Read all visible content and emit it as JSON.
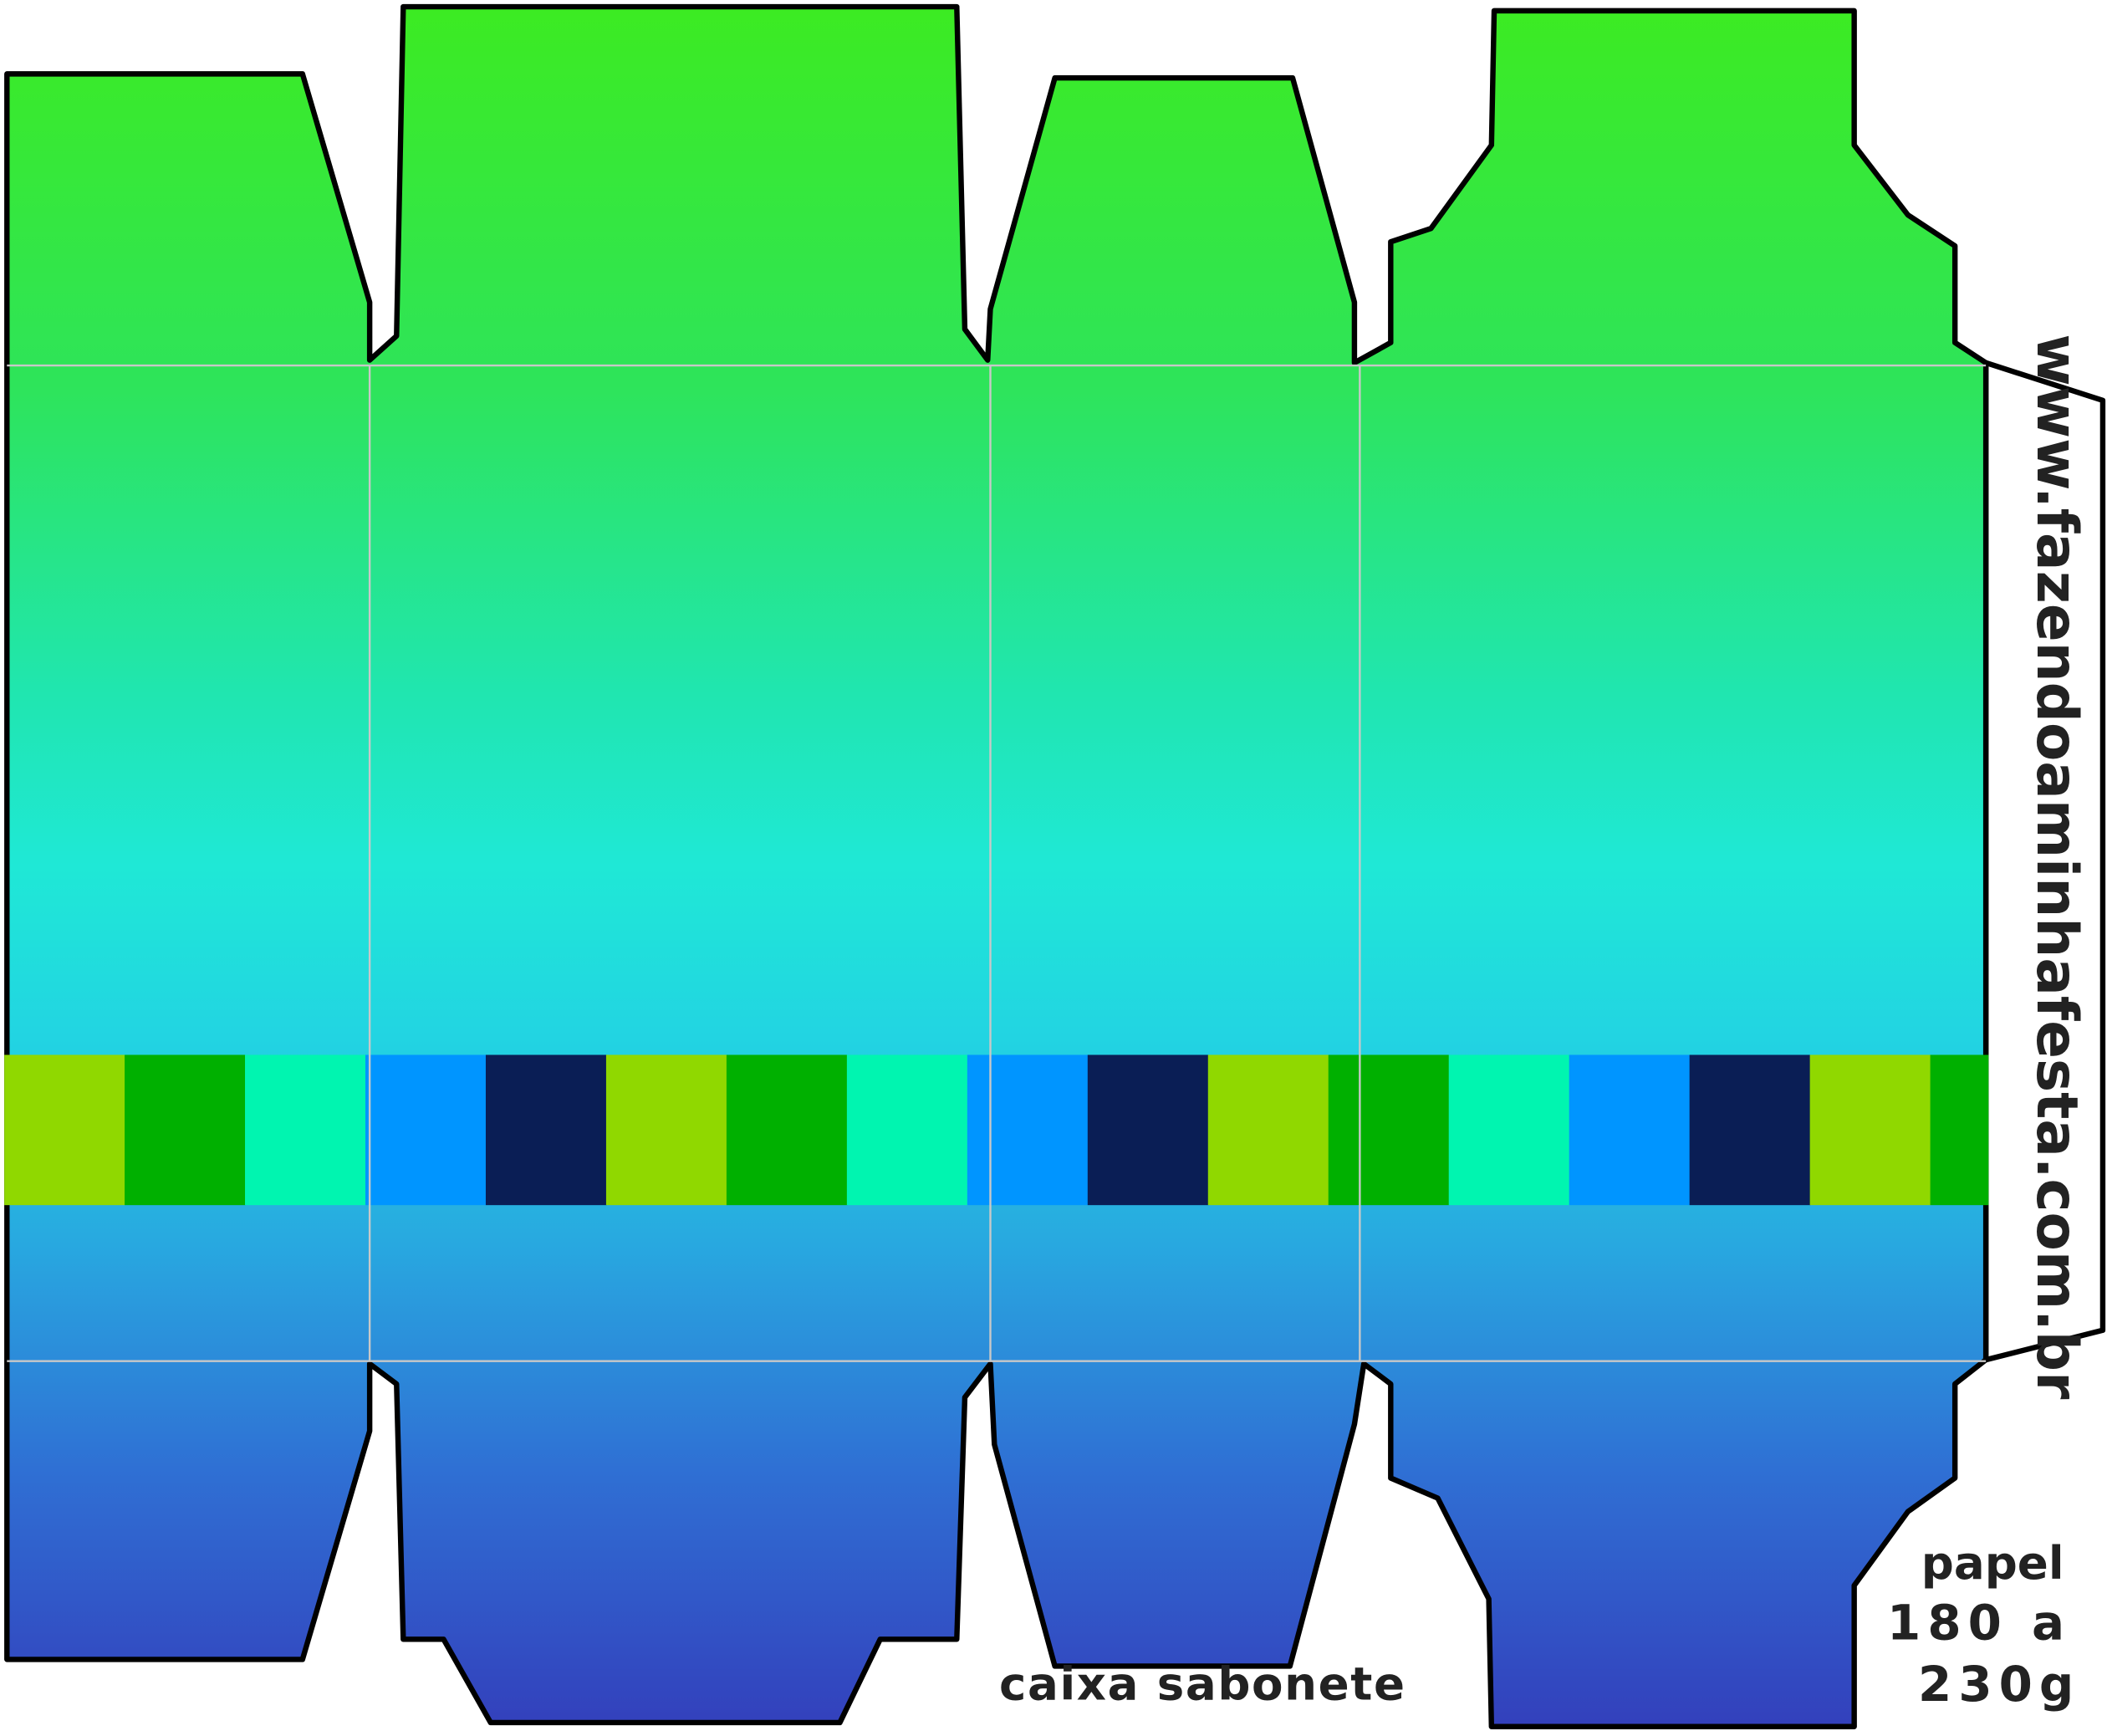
{
  "texts": {
    "url": "www.fazendoaminhafesta.com.br",
    "label": "caixa sabonete",
    "paper": [
      "papel",
      "180 a",
      "230g"
    ]
  }
}
